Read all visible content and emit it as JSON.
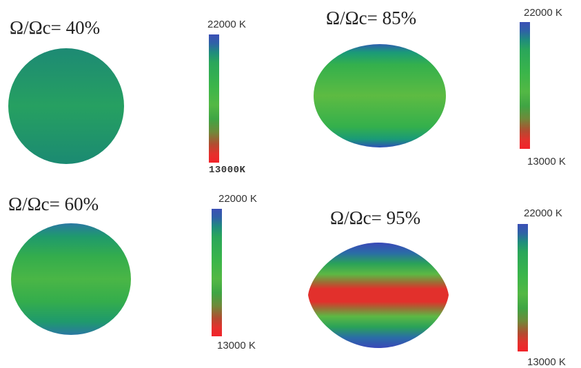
{
  "panels": [
    {
      "title": "Ω/Ωc= 40%",
      "scale_max": "22000 K",
      "scale_min": "13000K"
    },
    {
      "title": "Ω/Ωc= 85%",
      "scale_max": "22000 K",
      "scale_min": "13000 K"
    },
    {
      "title": "Ω/Ωc= 60%",
      "scale_max": "22000 K",
      "scale_min": "13000 K"
    },
    {
      "title": "Ω/Ωc= 95%",
      "scale_max": "22000 K",
      "scale_min": "13000 K"
    }
  ],
  "colors": {
    "hot": "#3b4fb6",
    "mid": "#3ab54a",
    "cool": "#f2232a"
  }
}
